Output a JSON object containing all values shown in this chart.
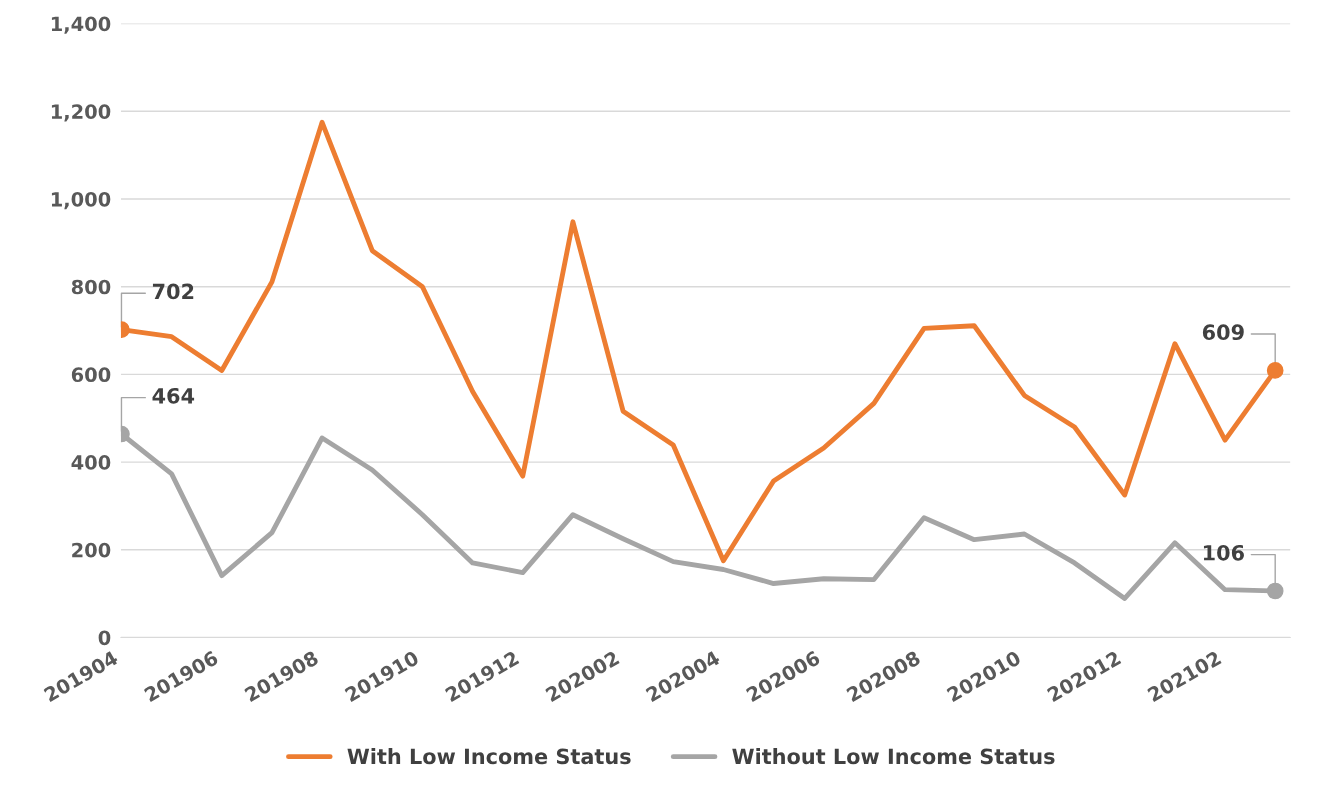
{
  "chart_data": {
    "type": "line",
    "categories": [
      "201904",
      null,
      "201906",
      null,
      "201908",
      null,
      "201910",
      null,
      "201912",
      null,
      "202002",
      null,
      "202004",
      null,
      "202006",
      null,
      "202008",
      null,
      "202010",
      null,
      "202012",
      null,
      "202102",
      null
    ],
    "series": [
      {
        "name": "With Low Income Status",
        "color": "#ed7d31",
        "values": [
          702,
          686,
          609,
          811,
          1175,
          882,
          800,
          561,
          368,
          948,
          516,
          439,
          175,
          357,
          432,
          534,
          705,
          711,
          552,
          480,
          325,
          670,
          450,
          609
        ],
        "value_labels": [
          "702",
          null,
          null,
          null,
          null,
          null,
          null,
          null,
          null,
          null,
          null,
          null,
          null,
          null,
          null,
          null,
          null,
          null,
          null,
          null,
          null,
          null,
          null,
          "609"
        ]
      },
      {
        "name": "Without Low Income Status",
        "color": "#a5a5a5",
        "values": [
          464,
          373,
          141,
          239,
          455,
          382,
          280,
          170,
          148,
          280,
          225,
          173,
          155,
          123,
          134,
          132,
          273,
          223,
          236,
          170,
          89,
          216,
          109,
          106
        ],
        "value_labels": [
          "464",
          null,
          null,
          null,
          null,
          null,
          null,
          null,
          null,
          null,
          null,
          null,
          null,
          null,
          null,
          null,
          null,
          null,
          null,
          null,
          null,
          null,
          null,
          "106"
        ]
      }
    ],
    "ylim": [
      0,
      1400
    ],
    "yticks": [
      0,
      {
        "value": 200,
        "label": "200"
      },
      {
        "value": 400,
        "label": "400"
      },
      {
        "value": 600,
        "label": "600"
      },
      {
        "value": 800,
        "label": "800"
      },
      {
        "value": 1000,
        "label": "1,000"
      },
      {
        "value": 1200,
        "label": "1,200"
      },
      {
        "value": 1400,
        "label": "1,400"
      }
    ],
    "grid": "y",
    "legend": "bottom"
  }
}
